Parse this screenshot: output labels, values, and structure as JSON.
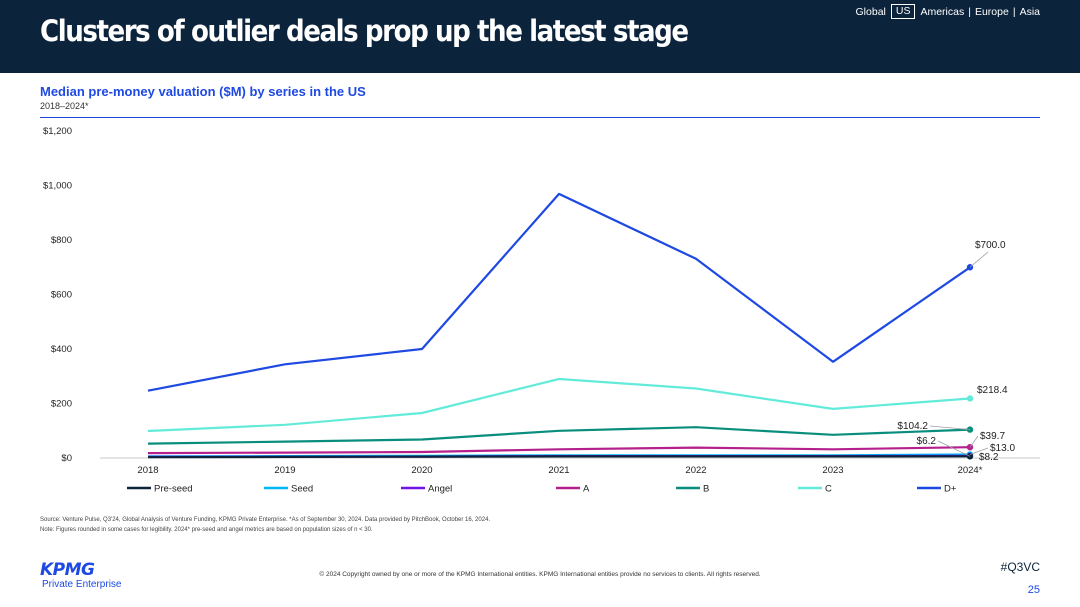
{
  "header": {
    "title": "Clusters of outlier deals prop up the latest stage",
    "regions": [
      "Global",
      "US",
      "Americas",
      "Europe",
      "Asia"
    ],
    "active_region": "US"
  },
  "chart_header": {
    "title": "Median pre-money valuation ($M) by series in the US",
    "subtitle": "2018–2024*"
  },
  "chart_data": {
    "type": "line",
    "title": "Median pre-money valuation ($M) by series in the US",
    "subtitle": "2018–2024*",
    "x": [
      "2018",
      "2019",
      "2020",
      "2021",
      "2022",
      "2023",
      "2024*"
    ],
    "ylim": [
      0,
      1200
    ],
    "yticks": [
      0,
      200,
      400,
      600,
      800,
      1000,
      1200
    ],
    "ytick_labels": [
      "$0",
      "$200",
      "$400",
      "$600",
      "$800",
      "$1,000",
      "$1,200"
    ],
    "grid": false,
    "legend_position": "bottom",
    "series": [
      {
        "name": "Pre-seed",
        "color": "#0c233c",
        "values": [
          3,
          4,
          5,
          6,
          6,
          6,
          6.2
        ],
        "end_label": "$6.2"
      },
      {
        "name": "Seed",
        "color": "#00b8f5",
        "values": [
          6,
          7,
          8,
          10,
          10,
          10,
          13.0
        ],
        "end_label": "$13.0"
      },
      {
        "name": "Angel",
        "color": "#7213ea",
        "values": [
          4,
          4,
          5,
          7,
          7,
          7,
          8.2
        ],
        "end_label": "$8.2"
      },
      {
        "name": "A",
        "color": "#b4218c",
        "values": [
          18,
          20,
          22,
          32,
          38,
          32,
          39.7
        ],
        "end_label": "$39.7"
      },
      {
        "name": "B",
        "color": "#098e7e",
        "values": [
          53,
          60,
          68,
          100,
          113,
          85,
          104.2
        ],
        "end_label": "$104.2"
      },
      {
        "name": "C",
        "color": "#63ebda",
        "values": [
          99,
          122,
          165,
          290,
          255,
          180,
          218.4
        ],
        "end_label": "$218.4"
      },
      {
        "name": "D+",
        "color": "#1e49e2",
        "values": [
          247,
          344,
          400,
          969,
          731,
          353,
          700.0
        ],
        "end_label": "$700.0"
      }
    ]
  },
  "footer": {
    "source": "Source: Venture Pulse, Q3'24, Global Analysis of Venture Funding, KPMG Private Enterprise. *As of September 30, 2024. Data provided by PitchBook, October 16, 2024.",
    "note": "Note: Figures rounded in some cases for legibility. 2024* pre-seed and angel metrics are based on population sizes of n < 30.",
    "copyright": "© 2024 Copyright owned by one or more of the KPMG International entities. KPMG International entities provide no services to clients. All rights reserved.",
    "hashtag": "#Q3VC",
    "page_number": "25"
  },
  "logo": {
    "word": "KPMG",
    "sub": "Private Enterprise"
  }
}
